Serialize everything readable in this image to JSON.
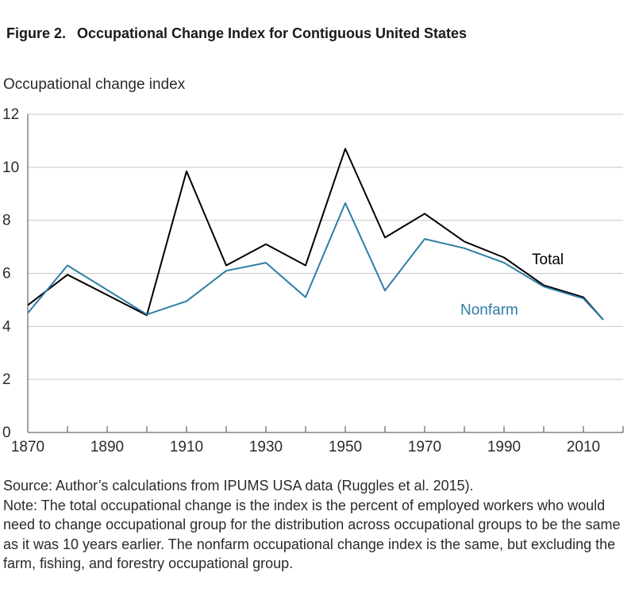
{
  "figure": {
    "number": "Figure 2.",
    "title": "Occupational Change Index for Contiguous United States"
  },
  "source": "Source: Author’s calculations from IPUMS USA data (Ruggles et al. 2015).",
  "note": "Note: The total occupational change is the index is the percent of employed workers who would need to change occupational group for the distribution across occupational groups to be the same as it was 10 years earlier. The nonfarm occupational change index is the same, but excluding the farm, fishing, and forestry occupational group.",
  "colors": {
    "total": "#000000",
    "nonfarm": "#2e7ea6",
    "grid": "#c8c8c8",
    "axis": "#444444"
  },
  "chart_data": {
    "type": "line",
    "ylabel": "Occupational change index",
    "xlabel": "",
    "xlim": [
      1870,
      2020
    ],
    "ylim": [
      0,
      12
    ],
    "xticks": [
      1870,
      1890,
      1910,
      1930,
      1950,
      1970,
      1990,
      2010
    ],
    "yticks": [
      0,
      2,
      4,
      6,
      8,
      10,
      12
    ],
    "grid": true,
    "x": [
      1870,
      1880,
      1900,
      1910,
      1920,
      1930,
      1940,
      1950,
      1960,
      1970,
      1980,
      1990,
      2000,
      2010,
      2015
    ],
    "series": [
      {
        "name": "Total",
        "label": "Total",
        "values": [
          4.8,
          5.95,
          4.42,
          9.85,
          6.3,
          7.1,
          6.3,
          10.7,
          7.35,
          8.25,
          7.2,
          6.6,
          5.55,
          5.1,
          4.25
        ]
      },
      {
        "name": "Nonfarm",
        "label": "Nonfarm",
        "values": [
          4.5,
          6.3,
          4.45,
          4.95,
          6.1,
          6.4,
          5.1,
          8.65,
          5.35,
          7.3,
          6.95,
          6.4,
          5.5,
          5.05,
          4.25
        ]
      }
    ]
  }
}
